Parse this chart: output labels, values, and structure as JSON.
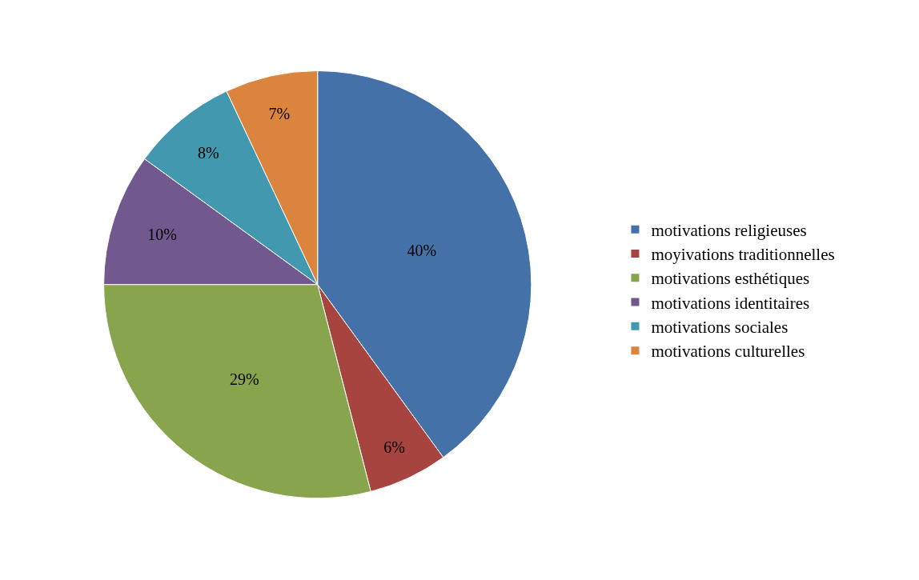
{
  "chart_data": {
    "type": "pie",
    "categories": [
      "motivations religieuses",
      "moyivations traditionnelles",
      "motivations esthétiques",
      "motivations identitaires",
      "motivations sociales",
      "motivations culturelles"
    ],
    "values": [
      40,
      6,
      29,
      10,
      8,
      7
    ],
    "value_labels": [
      "40%",
      "6%",
      "29%",
      "10%",
      "8%",
      "7%"
    ],
    "colors": [
      "#4472a8",
      "#a84440",
      "#88a44c",
      "#71588f",
      "#4198af",
      "#db843d"
    ],
    "legend": "right"
  }
}
